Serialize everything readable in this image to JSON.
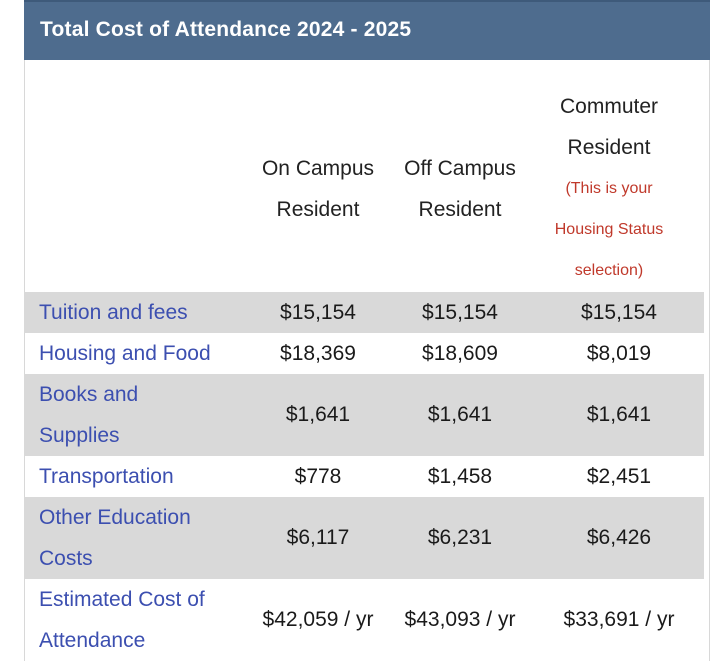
{
  "title": "Total Cost of Attendance 2024 - 2025",
  "columns": [
    {
      "line1": "On Campus",
      "line2": "Resident"
    },
    {
      "line1": "Off Campus",
      "line2": "Resident"
    },
    {
      "line1": "Commuter",
      "line2": "Resident",
      "note1": "(This is your",
      "note2": "Housing Status",
      "note3": "selection)"
    }
  ],
  "rows": [
    {
      "label": "Tuition and fees",
      "values": [
        "$15,154",
        "$15,154",
        "$15,154"
      ]
    },
    {
      "label": "Housing and Food",
      "values": [
        "$18,369",
        "$18,609",
        "$8,019"
      ]
    },
    {
      "label_line1": "Books and",
      "label_line2": "Supplies",
      "values": [
        "$1,641",
        "$1,641",
        "$1,641"
      ]
    },
    {
      "label": "Transportation",
      "values": [
        "$778",
        "$1,458",
        "$2,451"
      ]
    },
    {
      "label_line1": "Other Education",
      "label_line2": "Costs",
      "values": [
        "$6,117",
        "$6,231",
        "$6,426"
      ]
    },
    {
      "label_line1": "Estimated Cost of",
      "label_line2": "Attendance",
      "values": [
        "$42,059 / yr",
        "$43,093 / yr",
        "$33,691 / yr"
      ]
    }
  ],
  "colors": {
    "header_bar": "#4e6c8e",
    "label_text": "#3c4fb0",
    "note_text": "#c0392b",
    "shaded_row": "#d9d9d9"
  }
}
